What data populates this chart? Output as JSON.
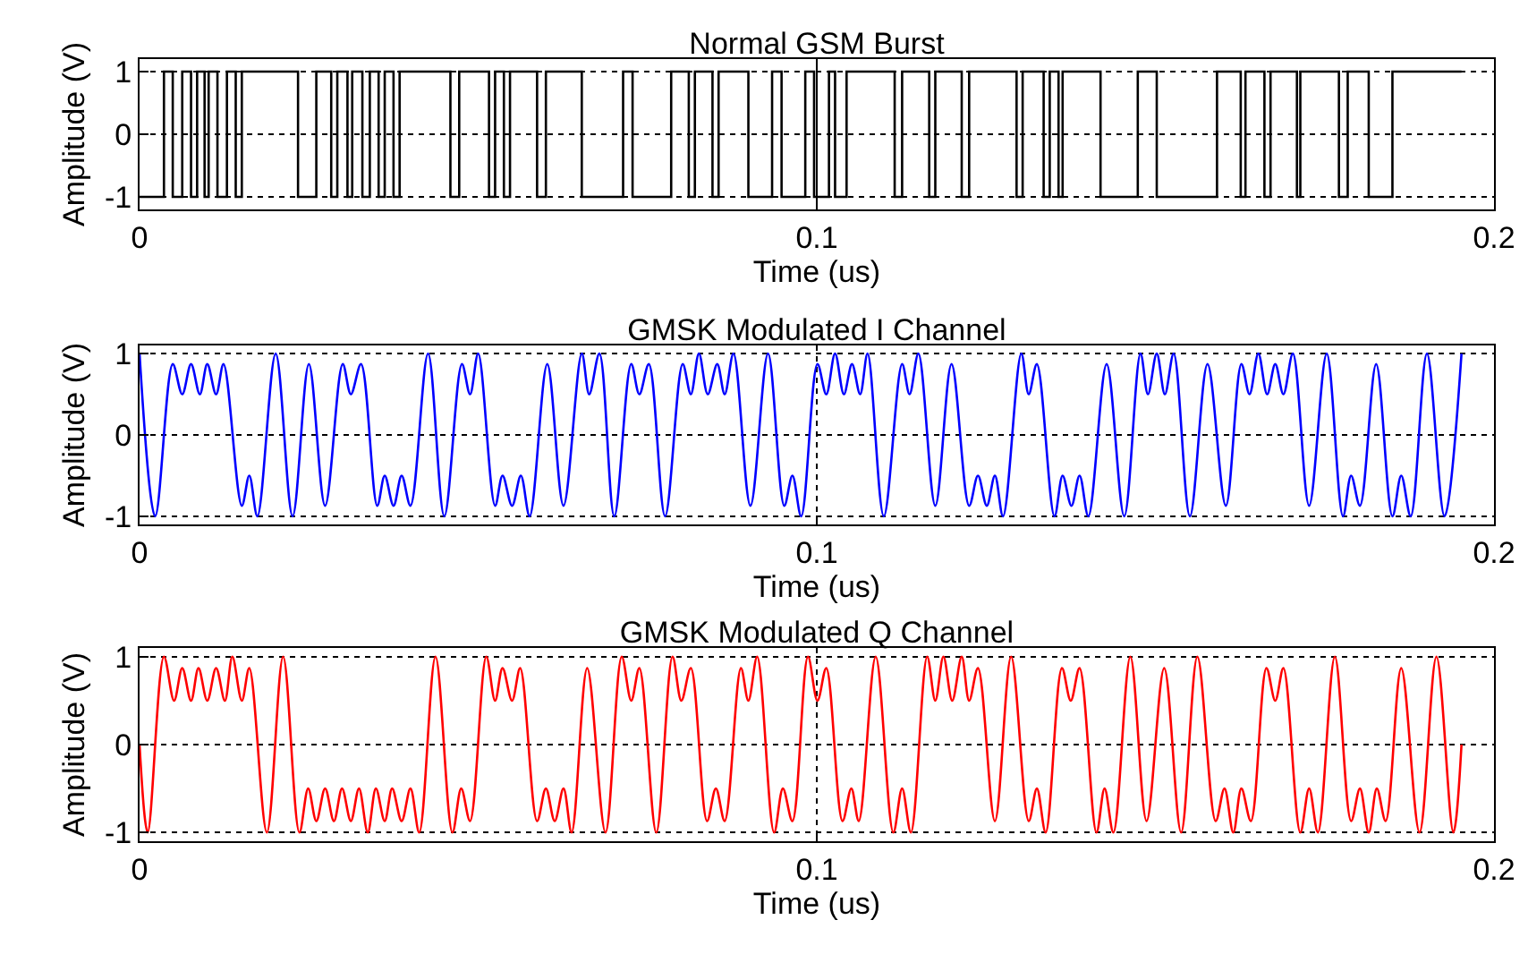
{
  "chart_data": [
    {
      "type": "step",
      "title": "Normal GSM Burst",
      "xlabel": "Time (us)",
      "ylabel": "Amplitude (V)",
      "xlim": [
        0,
        0.2
      ],
      "xticks": [
        0,
        0.1,
        0.2
      ],
      "ylim": [
        -1.2,
        1.2
      ],
      "yticks": [
        -1,
        0,
        1
      ],
      "grid": true,
      "ref_lines": [
        {
          "axis": "x",
          "value": 0.1,
          "color": "#000000"
        }
      ],
      "series": [
        {
          "color": "#000000",
          "x": [
            0,
            0.0036,
            0.0049,
            0.0063,
            0.0076,
            0.0085,
            0.0096,
            0.0102,
            0.0115,
            0.0129,
            0.0142,
            0.0151,
            0.0234,
            0.0261,
            0.0283,
            0.0292,
            0.0307,
            0.0314,
            0.0329,
            0.034,
            0.0353,
            0.0362,
            0.0375,
            0.0384,
            0.0459,
            0.0472,
            0.0516,
            0.0525,
            0.0538,
            0.0547,
            0.0587,
            0.06,
            0.0653,
            0.0714,
            0.0728,
            0.0785,
            0.0811,
            0.082,
            0.0846,
            0.0855,
            0.0899,
            0.0934,
            0.0948,
            0.0983,
            0.0996,
            0.1018,
            0.1027,
            0.1044,
            0.1115,
            0.1126,
            0.1166,
            0.1175,
            0.1214,
            0.1225,
            0.1295,
            0.1304,
            0.1335,
            0.1344,
            0.1357,
            0.1363,
            0.1419,
            0.1474,
            0.1502,
            0.1591,
            0.1626,
            0.1633,
            0.1661,
            0.167,
            0.1709,
            0.1714,
            0.1771,
            0.1784,
            0.1815,
            0.185,
            0.1952
          ],
          "values": [
            -1,
            1,
            -1,
            1,
            -1,
            1,
            -1,
            1,
            -1,
            1,
            -1,
            1,
            -1,
            1,
            -1,
            1,
            -1,
            1,
            -1,
            1,
            -1,
            1,
            -1,
            1,
            -1,
            1,
            -1,
            1,
            -1,
            1,
            -1,
            1,
            -1,
            1,
            -1,
            1,
            -1,
            1,
            -1,
            1,
            -1,
            1,
            -1,
            1,
            -1,
            1,
            -1,
            1,
            -1,
            1,
            -1,
            1,
            -1,
            1,
            -1,
            1,
            -1,
            1,
            -1,
            1,
            -1,
            1,
            -1,
            1,
            -1,
            1,
            -1,
            1,
            -1,
            1,
            -1,
            1,
            -1,
            1,
            1
          ]
        }
      ]
    },
    {
      "type": "line",
      "title": "GMSK Modulated I Channel",
      "xlabel": "Time (us)",
      "ylabel": "Amplitude (V)",
      "xlim": [
        0,
        0.2
      ],
      "xticks": [
        0,
        0.1,
        0.2
      ],
      "ylim": [
        -1.1,
        1.1
      ],
      "yticks": [
        -1,
        0,
        1
      ],
      "grid": true,
      "series": [
        {
          "color": "#0000ff",
          "x": [
            0,
            0.0023,
            0.0049,
            0.0063,
            0.0076,
            0.0089,
            0.01,
            0.0113,
            0.0124,
            0.0151,
            0.0162,
            0.0174,
            0.0201,
            0.0226,
            0.025,
            0.0274,
            0.03,
            0.0312,
            0.0327,
            0.0351,
            0.0362,
            0.0375,
            0.0387,
            0.04,
            0.0426,
            0.045,
            0.0476,
            0.0488,
            0.05,
            0.0525,
            0.0536,
            0.055,
            0.0563,
            0.0576,
            0.0602,
            0.0626,
            0.0653,
            0.0664,
            0.0679,
            0.0701,
            0.0726,
            0.0738,
            0.0752,
            0.0776,
            0.0802,
            0.0814,
            0.0826,
            0.0839,
            0.0853,
            0.0864,
            0.0877,
            0.0902,
            0.0928,
            0.0952,
            0.0964,
            0.0977,
            0.1001,
            0.1014,
            0.1027,
            0.104,
            0.1052,
            0.1064,
            0.1075,
            0.1099,
            0.1126,
            0.1137,
            0.115,
            0.1175,
            0.1199,
            0.1225,
            0.1238,
            0.1251,
            0.1263,
            0.1275,
            0.1302,
            0.1313,
            0.1325,
            0.1351,
            0.1363,
            0.1376,
            0.1388,
            0.1401,
            0.1428,
            0.1454,
            0.1478,
            0.1489,
            0.1502,
            0.1514,
            0.1527,
            0.1551,
            0.1577,
            0.1604,
            0.1627,
            0.1639,
            0.1652,
            0.1665,
            0.1677,
            0.1689,
            0.1703,
            0.1727,
            0.1753,
            0.1777,
            0.1789,
            0.1802,
            0.1826,
            0.185,
            0.1863,
            0.1877,
            0.1901,
            0.1927,
            0.1952
          ],
          "values": [
            1,
            -1,
            0.87,
            0.5,
            0.87,
            0.5,
            0.87,
            0.5,
            0.87,
            -0.87,
            -0.5,
            -1,
            1,
            -1,
            0.87,
            -0.87,
            0.87,
            0.5,
            0.87,
            -0.87,
            -0.5,
            -0.87,
            -0.5,
            -0.87,
            1,
            -1,
            0.87,
            0.5,
            1,
            -0.87,
            -0.5,
            -0.87,
            -0.5,
            -1,
            0.87,
            -0.87,
            1,
            0.5,
            1,
            -1,
            0.87,
            0.5,
            0.87,
            -1,
            0.87,
            0.5,
            1,
            0.5,
            0.87,
            0.5,
            1,
            -0.87,
            1,
            -0.87,
            -0.5,
            -1,
            0.87,
            0.5,
            1,
            0.5,
            0.87,
            0.5,
            1,
            -1,
            0.87,
            0.5,
            1,
            -0.87,
            0.87,
            -0.87,
            -0.5,
            -0.87,
            -0.5,
            -1,
            1,
            0.5,
            0.87,
            -1,
            -0.5,
            -0.87,
            -0.5,
            -1,
            0.87,
            -1,
            1,
            0.5,
            1,
            0.5,
            1,
            -1,
            0.87,
            -0.87,
            0.87,
            0.5,
            1,
            0.5,
            0.87,
            0.5,
            1,
            -0.87,
            1,
            -1,
            -0.5,
            -0.87,
            0.87,
            -1,
            -0.5,
            -1,
            1,
            -1,
            1
          ]
        }
      ]
    },
    {
      "type": "line",
      "title": "GMSK Modulated Q Channel",
      "xlabel": "Time (us)",
      "ylabel": "Amplitude (V)",
      "xlim": [
        0,
        0.2
      ],
      "xticks": [
        0,
        0.1,
        0.2
      ],
      "ylim": [
        -1.1,
        1.1
      ],
      "yticks": [
        -1,
        0,
        1
      ],
      "grid": true,
      "series": [
        {
          "color": "#ff0000",
          "x": [
            0,
            0.0012,
            0.0036,
            0.0051,
            0.0063,
            0.0076,
            0.0087,
            0.01,
            0.0113,
            0.0126,
            0.0137,
            0.0151,
            0.0162,
            0.0188,
            0.0212,
            0.0236,
            0.0249,
            0.0261,
            0.0274,
            0.0287,
            0.0299,
            0.0312,
            0.0324,
            0.0337,
            0.0349,
            0.0362,
            0.0373,
            0.0387,
            0.04,
            0.0413,
            0.0437,
            0.0462,
            0.0475,
            0.0488,
            0.0512,
            0.0525,
            0.0536,
            0.055,
            0.0562,
            0.0587,
            0.06,
            0.0613,
            0.0626,
            0.0638,
            0.0661,
            0.0688,
            0.0712,
            0.0726,
            0.0738,
            0.0763,
            0.0787,
            0.08,
            0.0814,
            0.0838,
            0.0851,
            0.0864,
            0.0888,
            0.0899,
            0.0912,
            0.0937,
            0.095,
            0.0964,
            0.0987,
            0.1001,
            0.1014,
            0.1038,
            0.1051,
            0.1062,
            0.1087,
            0.1113,
            0.1126,
            0.1139,
            0.1163,
            0.1175,
            0.1187,
            0.12,
            0.1214,
            0.1225,
            0.1238,
            0.1263,
            0.1287,
            0.1313,
            0.1325,
            0.1338,
            0.1362,
            0.1375,
            0.1388,
            0.1413,
            0.1425,
            0.1438,
            0.1463,
            0.1487,
            0.1513,
            0.1538,
            0.1562,
            0.1589,
            0.1602,
            0.1615,
            0.1627,
            0.1641,
            0.1664,
            0.1677,
            0.1689,
            0.1714,
            0.1727,
            0.174,
            0.1765,
            0.1789,
            0.1802,
            0.1815,
            0.1827,
            0.184,
            0.1863,
            0.189,
            0.1915,
            0.194,
            0.1952
          ],
          "values": [
            0,
            -1,
            1,
            0.5,
            0.87,
            0.5,
            0.87,
            0.5,
            0.87,
            0.5,
            1,
            0.5,
            0.87,
            -1,
            1,
            -1,
            -0.5,
            -0.87,
            -0.5,
            -0.87,
            -0.5,
            -0.87,
            -0.5,
            -1,
            -0.5,
            -0.87,
            -0.5,
            -0.87,
            -0.5,
            -1,
            1,
            -1,
            -0.5,
            -0.87,
            1,
            0.5,
            0.87,
            0.5,
            0.87,
            -0.87,
            -0.5,
            -0.87,
            -0.5,
            -1,
            0.87,
            -1,
            1,
            0.5,
            0.87,
            -1,
            1,
            0.5,
            0.87,
            -0.87,
            -0.5,
            -0.87,
            0.87,
            0.5,
            1,
            -1,
            -0.5,
            -0.87,
            1,
            0.5,
            0.87,
            -0.87,
            -0.5,
            -0.87,
            1,
            -1,
            -0.5,
            -1,
            1,
            0.5,
            1,
            0.5,
            1,
            0.5,
            0.87,
            -0.87,
            1,
            -0.87,
            -0.5,
            -1,
            0.87,
            0.5,
            0.87,
            -1,
            -0.5,
            -1,
            1,
            -0.87,
            0.87,
            -1,
            1,
            -0.87,
            -0.5,
            -1,
            -0.5,
            -0.87,
            0.87,
            0.5,
            0.87,
            -1,
            -0.5,
            -1,
            1,
            -0.87,
            -0.5,
            -1,
            -0.5,
            -0.87,
            0.87,
            -1,
            1,
            -1,
            0
          ]
        }
      ]
    }
  ]
}
